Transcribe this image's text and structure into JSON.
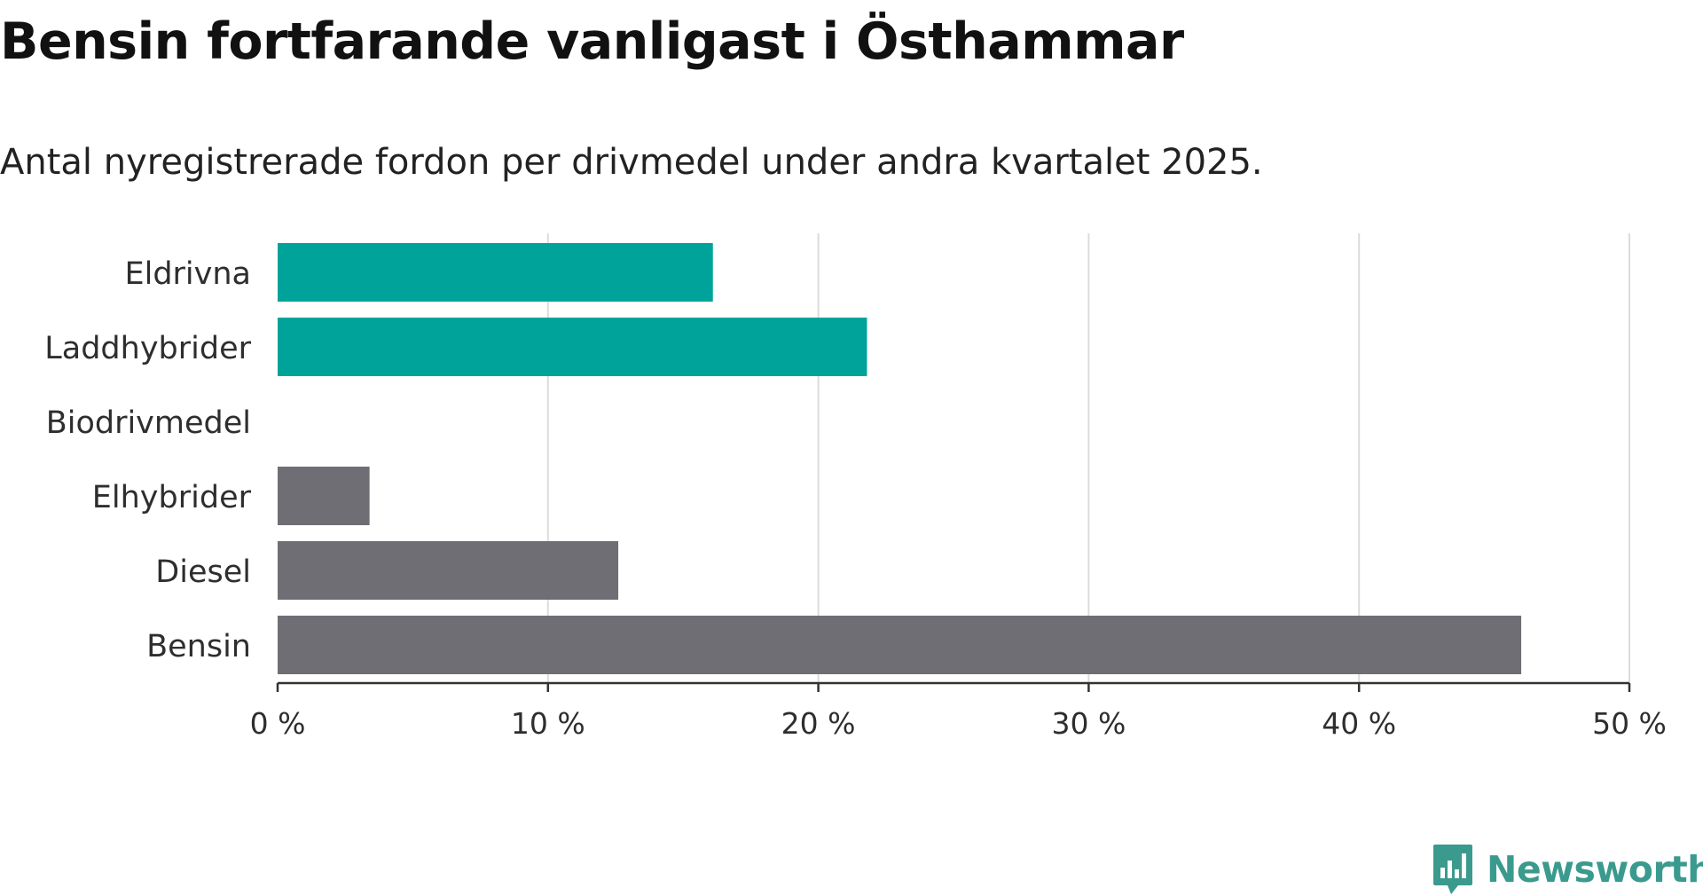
{
  "title": "Bensin fortfarande vanligast i Östhammar",
  "subtitle": "Antal nyregistrerade fordon per drivmedel under andra kvartalet 2025.",
  "brand": {
    "name": "Newsworthy",
    "icon": "newsworthy-logo-icon",
    "color": "#3a9a8e"
  },
  "chart_data": {
    "type": "bar",
    "orientation": "horizontal",
    "categories": [
      "Eldrivna",
      "Laddhybrider",
      "Biodrivmedel",
      "Elhybrider",
      "Diesel",
      "Bensin"
    ],
    "values": [
      16.1,
      21.8,
      0,
      3.4,
      12.6,
      46.0
    ],
    "colors": [
      "#00a39a",
      "#00a39a",
      "#00a39a",
      "#6f6e75",
      "#6f6e75",
      "#6f6e75"
    ],
    "x_ticks": [
      0,
      10,
      20,
      30,
      40,
      50
    ],
    "tick_labels": [
      "0 %",
      "10 %",
      "20 %",
      "30 %",
      "40 %",
      "50 %"
    ],
    "xlim": [
      0,
      50
    ],
    "xlabel": "",
    "ylabel": "",
    "grid": "vertical"
  }
}
